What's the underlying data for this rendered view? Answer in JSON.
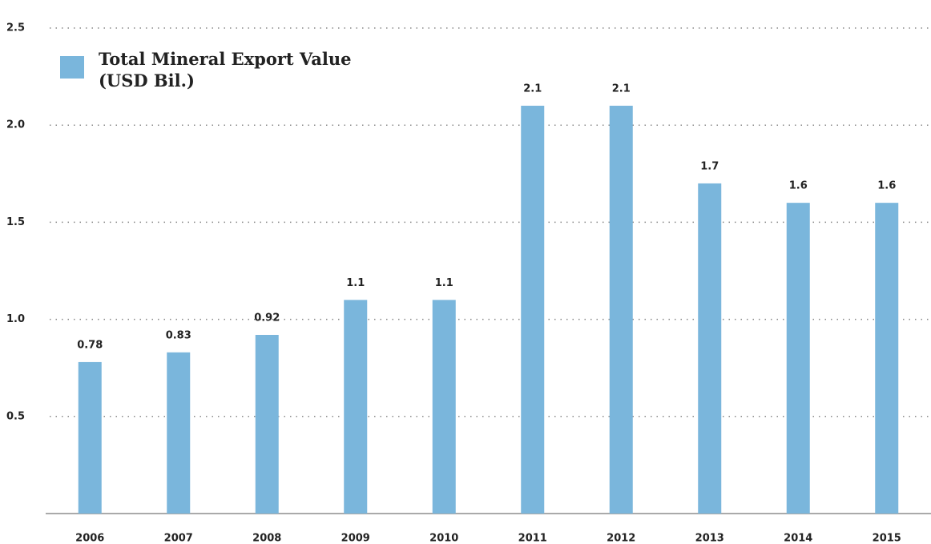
{
  "chart_data": {
    "type": "bar",
    "categories": [
      "2006",
      "2007",
      "2008",
      "2009",
      "2010",
      "2011",
      "2012",
      "2013",
      "2014",
      "2015"
    ],
    "series": [
      {
        "name": "Total Mineral Export Value (USD Bil.)",
        "color": "#7ab6dc",
        "values": [
          0.78,
          0.83,
          0.92,
          1.1,
          1.1,
          2.1,
          2.1,
          1.7,
          1.6,
          1.6
        ]
      }
    ],
    "ylim": [
      0,
      2.5
    ],
    "yticks": [
      0.5,
      {
        "value": 1,
        "label": "1.0"
      },
      1.5,
      {
        "value": 2,
        "label": "2.0"
      },
      2.5
    ],
    "grid": true,
    "legend": "top-left"
  }
}
